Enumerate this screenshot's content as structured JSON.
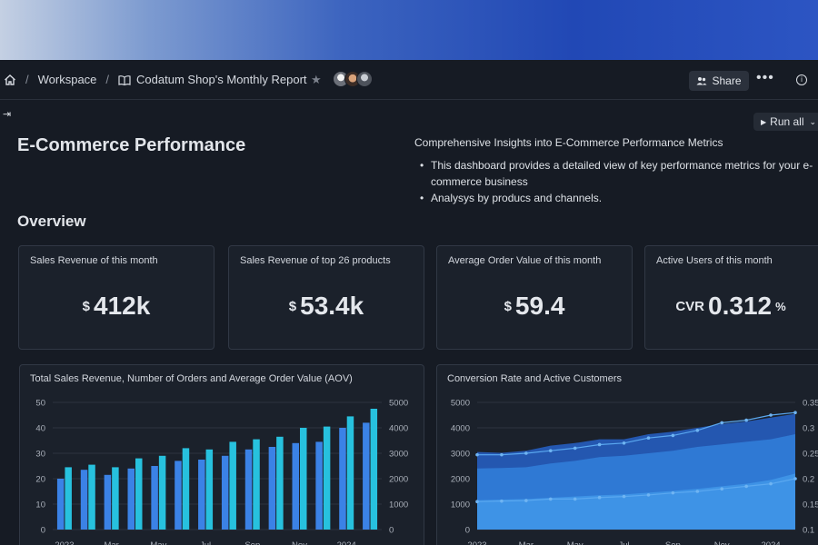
{
  "nav": {
    "workspace": "Workspace",
    "report": "Codatum Shop's Monthly Report",
    "share": "Share",
    "more": "•••",
    "info": "i"
  },
  "toolbar": {
    "run_all": "Run all"
  },
  "page": {
    "title": "E-Commerce Performance",
    "description_title": "Comprehensive Insights into E-Commerce Performance Metrics",
    "description_items": [
      "This dashboard provides a detailed view of key performance metrics for your e-commerce business",
      "Analysys by producs and channels."
    ],
    "section": "Overview"
  },
  "kpis": [
    {
      "title": "Sales Revenue of this month",
      "prefix": "$",
      "value": "412k",
      "suffix": ""
    },
    {
      "title": "Sales Revenue of top 26 products",
      "prefix": "$",
      "value": "53.4k",
      "suffix": ""
    },
    {
      "title": "Average Order Value of this month",
      "prefix": "$",
      "value": "59.4",
      "suffix": ""
    },
    {
      "title": "Active Users of this month",
      "prefix": "CVR",
      "value": "0.312",
      "suffix": "%"
    }
  ],
  "colors": {
    "accent": "#2f6fd6",
    "bar_a": "#3b82e6",
    "bar_b": "#27c1de",
    "area_dark": "#2457b0",
    "area_mid": "#2f79d4",
    "area_light": "#3e93e6"
  },
  "chart_data": [
    {
      "type": "bar",
      "title": "Total Sales Revenue, Number of Orders and Average Order Value (AOV)",
      "x_tick_labels": [
        "2023",
        "Mar",
        "May",
        "Jul",
        "Sep",
        "Nov",
        "2024"
      ],
      "y_left": {
        "ticks": [
          "0",
          "10",
          "20",
          "30",
          "40",
          "50"
        ],
        "range": [
          0,
          50
        ]
      },
      "y_right": {
        "ticks": [
          "0",
          "1000",
          "2000",
          "3000",
          "4000",
          "5000"
        ],
        "range": [
          0,
          5000
        ]
      },
      "series": [
        {
          "axis": "left",
          "values": [
            20,
            23.5,
            21.5,
            24,
            25,
            27,
            27.5,
            29,
            31.5,
            32.5,
            34,
            34.5,
            40,
            42
          ]
        },
        {
          "axis": "right",
          "values": [
            2450,
            2550,
            2450,
            2800,
            2900,
            3200,
            3150,
            3450,
            3550,
            3650,
            4000,
            4050,
            4450,
            4750
          ]
        }
      ]
    },
    {
      "type": "area",
      "title": "Conversion Rate and Active Customers",
      "x_tick_labels": [
        "2023",
        "Mar",
        "May",
        "Jul",
        "Sep",
        "Nov",
        "2024"
      ],
      "y_left": {
        "ticks": [
          "0",
          "1000",
          "2000",
          "3000",
          "4000",
          "5000"
        ],
        "range": [
          0,
          5000
        ]
      },
      "y_right": {
        "ticks": [
          "0.1",
          "0.15",
          "0.2",
          "0.25",
          "0.3",
          "0.35"
        ],
        "range": [
          0.1,
          0.35
        ]
      },
      "series": [
        {
          "values": [
            1150,
            1180,
            1200,
            1250,
            1300,
            1350,
            1380,
            1450,
            1520,
            1600,
            1700,
            1800,
            1950,
            2200
          ]
        },
        {
          "values": [
            2400,
            2420,
            2450,
            2600,
            2700,
            2850,
            2900,
            3000,
            3100,
            3250,
            3350,
            3450,
            3550,
            3750
          ]
        },
        {
          "values": [
            3050,
            3020,
            3100,
            3300,
            3400,
            3550,
            3550,
            3750,
            3850,
            4000,
            4150,
            4250,
            4400,
            4550
          ]
        },
        {
          "axis": "right",
          "line": true,
          "values": [
            0.155,
            0.156,
            0.157,
            0.16,
            0.16,
            0.163,
            0.165,
            0.168,
            0.172,
            0.175,
            0.18,
            0.185,
            0.19,
            0.2
          ]
        },
        {
          "axis": "right",
          "line": true,
          "values": [
            0.247,
            0.247,
            0.25,
            0.255,
            0.26,
            0.267,
            0.27,
            0.28,
            0.285,
            0.295,
            0.31,
            0.315,
            0.325,
            0.33
          ]
        }
      ]
    }
  ]
}
